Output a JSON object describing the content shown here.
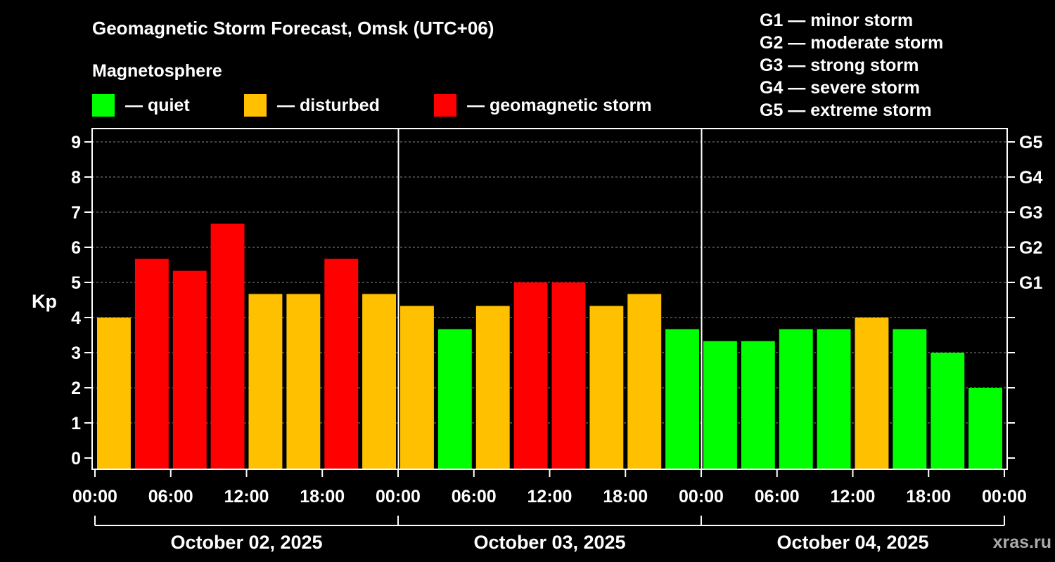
{
  "chart_data": {
    "type": "bar",
    "title": "Geomagnetic Storm Forecast, Omsk (UTC+06)",
    "subtitle": "Magnetosphere",
    "ylabel": "Kp",
    "ylim": [
      0,
      9
    ],
    "yticks": [
      "0",
      "1",
      "2",
      "3",
      "4",
      "5",
      "6",
      "7",
      "8",
      "9"
    ],
    "right_ticks": [
      {
        "kp": 5,
        "label": "G1"
      },
      {
        "kp": 6,
        "label": "G2"
      },
      {
        "kp": 7,
        "label": "G3"
      },
      {
        "kp": 8,
        "label": "G4"
      },
      {
        "kp": 9,
        "label": "G5"
      }
    ],
    "x_hours": 72,
    "xtick_labels": [
      "00:00",
      "06:00",
      "12:00",
      "18:00",
      "00:00",
      "06:00",
      "12:00",
      "18:00",
      "00:00",
      "06:00",
      "12:00",
      "18:00",
      "00:00"
    ],
    "days": [
      "October 02, 2025",
      "October 03, 2025",
      "October 04, 2025"
    ],
    "legend": [
      {
        "key": "quiet",
        "label": "— quiet",
        "color": "#00ff00"
      },
      {
        "key": "disturbed",
        "label": "— disturbed",
        "color": "#ffc000"
      },
      {
        "key": "storm",
        "label": "— geomagnetic storm",
        "color": "#ff0000"
      }
    ],
    "storm_levels": [
      "G1 — minor storm",
      "G2 — moderate storm",
      "G3 — strong storm",
      "G4 — severe storm",
      "G5 — extreme storm"
    ],
    "bars": [
      {
        "kp": 4.0,
        "level": "disturbed"
      },
      {
        "kp": 5.67,
        "level": "storm"
      },
      {
        "kp": 5.33,
        "level": "storm"
      },
      {
        "kp": 6.67,
        "level": "storm"
      },
      {
        "kp": 4.67,
        "level": "disturbed"
      },
      {
        "kp": 4.67,
        "level": "disturbed"
      },
      {
        "kp": 5.67,
        "level": "storm"
      },
      {
        "kp": 4.67,
        "level": "disturbed"
      },
      {
        "kp": 4.33,
        "level": "disturbed"
      },
      {
        "kp": 3.67,
        "level": "quiet"
      },
      {
        "kp": 4.33,
        "level": "disturbed"
      },
      {
        "kp": 5.0,
        "level": "storm"
      },
      {
        "kp": 5.0,
        "level": "storm"
      },
      {
        "kp": 4.33,
        "level": "disturbed"
      },
      {
        "kp": 4.67,
        "level": "disturbed"
      },
      {
        "kp": 3.67,
        "level": "quiet"
      },
      {
        "kp": 3.33,
        "level": "quiet"
      },
      {
        "kp": 3.33,
        "level": "quiet"
      },
      {
        "kp": 3.67,
        "level": "quiet"
      },
      {
        "kp": 3.67,
        "level": "quiet"
      },
      {
        "kp": 4.0,
        "level": "disturbed"
      },
      {
        "kp": 3.67,
        "level": "quiet"
      },
      {
        "kp": 3.0,
        "level": "quiet"
      },
      {
        "kp": 2.0,
        "level": "quiet"
      }
    ],
    "watermark": "xras.ru"
  }
}
